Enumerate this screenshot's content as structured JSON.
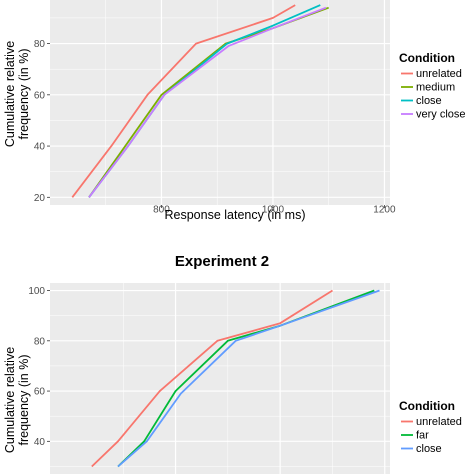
{
  "chart_data": [
    {
      "type": "line",
      "title": "",
      "xlabel": "Response latency (in ms)",
      "ylabel": "Cumulative relative frequency (in %)",
      "ylabel_lines": [
        "Cumulative relative",
        "frequency (in %)"
      ],
      "xlim": [
        600,
        1210
      ],
      "ylim": [
        17,
        97
      ],
      "x_ticks": [
        800,
        1000,
        1200
      ],
      "y_ticks": [
        20,
        40,
        60,
        80
      ],
      "grid": true,
      "legend_title": "Condition",
      "legend_position": "right",
      "series": [
        {
          "name": "unrelated",
          "color": "#F8766D",
          "x": [
            640,
            710,
            775,
            862,
            1000,
            1040
          ],
          "y": [
            20,
            40,
            60,
            80,
            90,
            95
          ]
        },
        {
          "name": "medium",
          "color": "#7CAE00",
          "x": [
            670,
            735,
            800,
            915,
            1000,
            1100
          ],
          "y": [
            20,
            40,
            60,
            80,
            86,
            94
          ]
        },
        {
          "name": "close",
          "color": "#00BFC4",
          "x": [
            670,
            740,
            805,
            918,
            1000,
            1085
          ],
          "y": [
            20,
            40,
            60,
            80,
            87,
            95
          ]
        },
        {
          "name": "very close",
          "color": "#C77CFF",
          "x": [
            670,
            740,
            805,
            920,
            1000,
            1095
          ],
          "y": [
            20,
            40,
            60,
            79,
            86,
            94
          ]
        }
      ]
    },
    {
      "type": "line",
      "title": "Experiment 2",
      "xlabel": "",
      "ylabel": "Cumulative relative frequency (in %)",
      "ylabel_lines": [
        "Cumulative relative",
        "frequency (in %)"
      ],
      "xlim": [
        560,
        1210
      ],
      "ylim": [
        27,
        103
      ],
      "y_ticks": [
        40,
        60,
        80,
        100
      ],
      "grid": true,
      "legend_title": "Condition",
      "legend_position": "right",
      "series": [
        {
          "name": "unrelated",
          "color": "#F8766D",
          "x": [
            640,
            690,
            770,
            880,
            1000,
            1100
          ],
          "y": [
            30,
            40,
            60,
            80,
            87,
            100
          ]
        },
        {
          "name": "far",
          "color": "#00BA38",
          "x": [
            690,
            740,
            800,
            900,
            1000,
            1180
          ],
          "y": [
            30,
            40,
            60,
            80,
            86,
            100
          ]
        },
        {
          "name": "close",
          "color": "#619CFF",
          "x": [
            690,
            745,
            810,
            915,
            1000,
            1190
          ],
          "y": [
            30,
            40,
            59,
            80,
            86,
            100
          ]
        }
      ]
    }
  ]
}
